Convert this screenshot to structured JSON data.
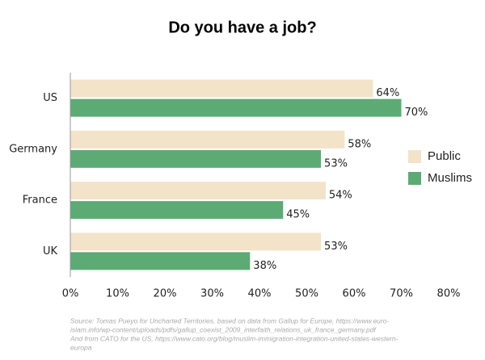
{
  "chart_data": {
    "type": "hbar",
    "title": "Do you have a job?",
    "categories": [
      "US",
      "Germany",
      "France",
      "UK"
    ],
    "series": [
      {
        "name": "Public",
        "color": "#f3e3c9",
        "values": [
          64,
          58,
          54,
          53
        ],
        "value_labels": [
          "64%",
          "58%",
          "54%",
          "53%"
        ]
      },
      {
        "name": "Muslims",
        "color": "#5cab74",
        "values": [
          70,
          53,
          45,
          38
        ],
        "value_labels": [
          "70%",
          "53%",
          "45%",
          "38%"
        ]
      }
    ],
    "xlim": [
      0,
      80
    ],
    "xticks": [
      {
        "value": 0,
        "label": "0%"
      },
      {
        "value": 10,
        "label": "10%"
      },
      {
        "value": 20,
        "label": "20%"
      },
      {
        "value": 30,
        "label": "30%"
      },
      {
        "value": 40,
        "label": "40%"
      },
      {
        "value": 50,
        "label": "50%"
      },
      {
        "value": 60,
        "label": "60%"
      },
      {
        "value": 70,
        "label": "70%"
      },
      {
        "value": 80,
        "label": "80%"
      }
    ],
    "grid": false,
    "legend": "right",
    "source_lines": [
      "Source: Tomas Pueyo for Uncharted Territories, based on data from Gallup for Europe, https://www.euro-",
      "islam.info/wp-content/uploads/pdfs/gallup_coexist_2009_interfaith_relations_uk_france_germany.pdf",
      "And from CATO for the US, https://www.cato.org/blog/muslim-immigration-integration-united-states-western-",
      "europa"
    ]
  }
}
